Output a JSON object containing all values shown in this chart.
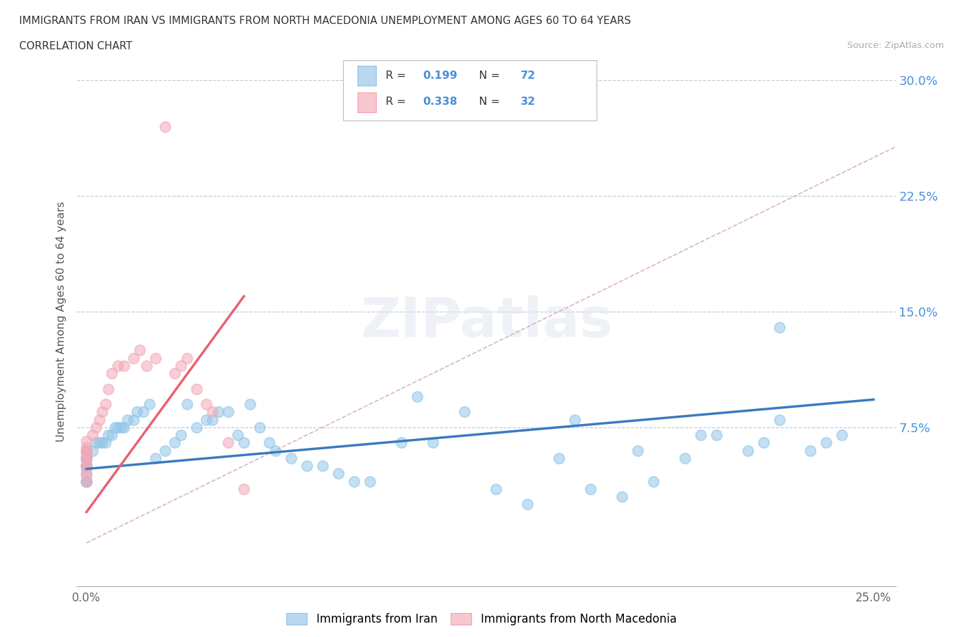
{
  "title_line1": "IMMIGRANTS FROM IRAN VS IMMIGRANTS FROM NORTH MACEDONIA UNEMPLOYMENT AMONG AGES 60 TO 64 YEARS",
  "title_line2": "CORRELATION CHART",
  "source": "Source: ZipAtlas.com",
  "ylabel": "Unemployment Among Ages 60 to 64 years",
  "xlim": [
    -0.003,
    0.257
  ],
  "ylim": [
    -0.028,
    0.315
  ],
  "xticks": [
    0.0,
    0.05,
    0.1,
    0.15,
    0.2,
    0.25
  ],
  "xtick_labels": [
    "0.0%",
    "",
    "",
    "",
    "",
    "25.0%"
  ],
  "ytick_positions": [
    0.075,
    0.15,
    0.225,
    0.3
  ],
  "ytick_labels": [
    "7.5%",
    "15.0%",
    "22.5%",
    "30.0%"
  ],
  "iran_scatter_color": "#93c6e8",
  "mac_scatter_color": "#f4a8b8",
  "iran_line_color": "#3a7abf",
  "mac_line_color": "#e86070",
  "diag_color": "#d0a0b0",
  "grid_color": "#c8c8d8",
  "background_color": "#ffffff",
  "legend_R_iran": "0.199",
  "legend_N_iran": "72",
  "legend_R_mac": "0.338",
  "legend_N_mac": "32",
  "iran_x": [
    0.0,
    0.0,
    0.0,
    0.0,
    0.0,
    0.0,
    0.0,
    0.0,
    0.0,
    0.0,
    0.0,
    0.0,
    0.002,
    0.003,
    0.004,
    0.005,
    0.006,
    0.007,
    0.008,
    0.009,
    0.01,
    0.011,
    0.012,
    0.013,
    0.015,
    0.016,
    0.018,
    0.02,
    0.022,
    0.025,
    0.028,
    0.03,
    0.032,
    0.035,
    0.038,
    0.04,
    0.042,
    0.045,
    0.048,
    0.05,
    0.052,
    0.055,
    0.058,
    0.06,
    0.065,
    0.07,
    0.075,
    0.08,
    0.085,
    0.09,
    0.1,
    0.105,
    0.11,
    0.12,
    0.13,
    0.14,
    0.15,
    0.16,
    0.17,
    0.18,
    0.19,
    0.2,
    0.21,
    0.22,
    0.23,
    0.24,
    0.155,
    0.175,
    0.195,
    0.215,
    0.235,
    0.22
  ],
  "iran_y": [
    0.04,
    0.04,
    0.04,
    0.045,
    0.05,
    0.05,
    0.05,
    0.055,
    0.055,
    0.055,
    0.06,
    0.06,
    0.06,
    0.065,
    0.065,
    0.065,
    0.065,
    0.07,
    0.07,
    0.075,
    0.075,
    0.075,
    0.075,
    0.08,
    0.08,
    0.085,
    0.085,
    0.09,
    0.055,
    0.06,
    0.065,
    0.07,
    0.09,
    0.075,
    0.08,
    0.08,
    0.085,
    0.085,
    0.07,
    0.065,
    0.09,
    0.075,
    0.065,
    0.06,
    0.055,
    0.05,
    0.05,
    0.045,
    0.04,
    0.04,
    0.065,
    0.095,
    0.065,
    0.085,
    0.035,
    0.025,
    0.055,
    0.035,
    0.03,
    0.04,
    0.055,
    0.07,
    0.06,
    0.08,
    0.06,
    0.07,
    0.08,
    0.06,
    0.07,
    0.065,
    0.065,
    0.14
  ],
  "mac_x": [
    0.0,
    0.0,
    0.0,
    0.0,
    0.0,
    0.0,
    0.0,
    0.0,
    0.0,
    0.0,
    0.002,
    0.003,
    0.004,
    0.005,
    0.006,
    0.007,
    0.008,
    0.01,
    0.012,
    0.015,
    0.017,
    0.019,
    0.022,
    0.025,
    0.028,
    0.03,
    0.032,
    0.035,
    0.038,
    0.04,
    0.045,
    0.05
  ],
  "mac_y": [
    0.04,
    0.044,
    0.048,
    0.05,
    0.054,
    0.056,
    0.058,
    0.06,
    0.062,
    0.066,
    0.07,
    0.075,
    0.08,
    0.085,
    0.09,
    0.1,
    0.11,
    0.115,
    0.115,
    0.12,
    0.125,
    0.115,
    0.12,
    0.27,
    0.11,
    0.115,
    0.12,
    0.1,
    0.09,
    0.085,
    0.065,
    0.035
  ]
}
